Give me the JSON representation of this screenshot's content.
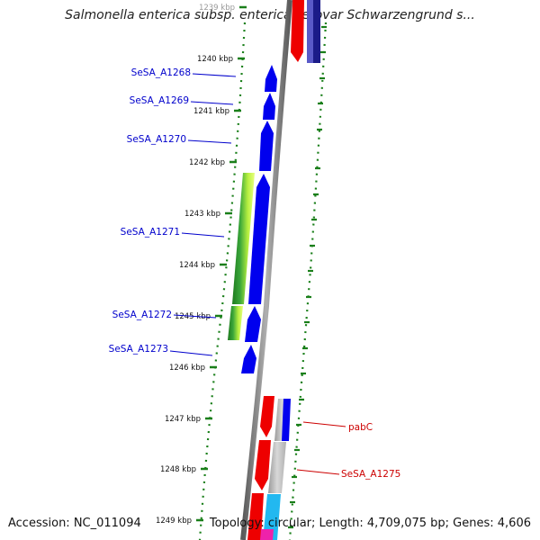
{
  "title": "Salmonella enterica subsp. enterica serovar Schwarzengrund s...",
  "footer": {
    "accession": "Accession: NC_011094",
    "summary": "Topology: circular; Length: 4,709,075 bp; Genes: 4,606"
  },
  "colors": {
    "forward_gene": "#0000ee",
    "reverse_gene": "#ee0000",
    "ruler": "#1a7f1a",
    "backbone": "#808080",
    "forward_label": "#0000cc",
    "reverse_label": "#cc0000"
  },
  "ruler": {
    "ticks": [
      "1239 kbp",
      "1240 kbp",
      "1241 kbp",
      "1242 kbp",
      "1243 kbp",
      "1244 kbp",
      "1245 kbp",
      "1246 kbp",
      "1247 kbp",
      "1248 kbp",
      "1249 kbp"
    ]
  },
  "gene_labels": [
    {
      "name": "SeSA_A1268",
      "strand": "forward"
    },
    {
      "name": "SeSA_A1269",
      "strand": "forward"
    },
    {
      "name": "SeSA_A1270",
      "strand": "forward"
    },
    {
      "name": "SeSA_A1271",
      "strand": "forward"
    },
    {
      "name": "SeSA_A1272",
      "strand": "forward"
    },
    {
      "name": "SeSA_A1273",
      "strand": "forward"
    },
    {
      "name": "pabC",
      "strand": "reverse"
    },
    {
      "name": "SeSA_A1275",
      "strand": "reverse"
    }
  ]
}
